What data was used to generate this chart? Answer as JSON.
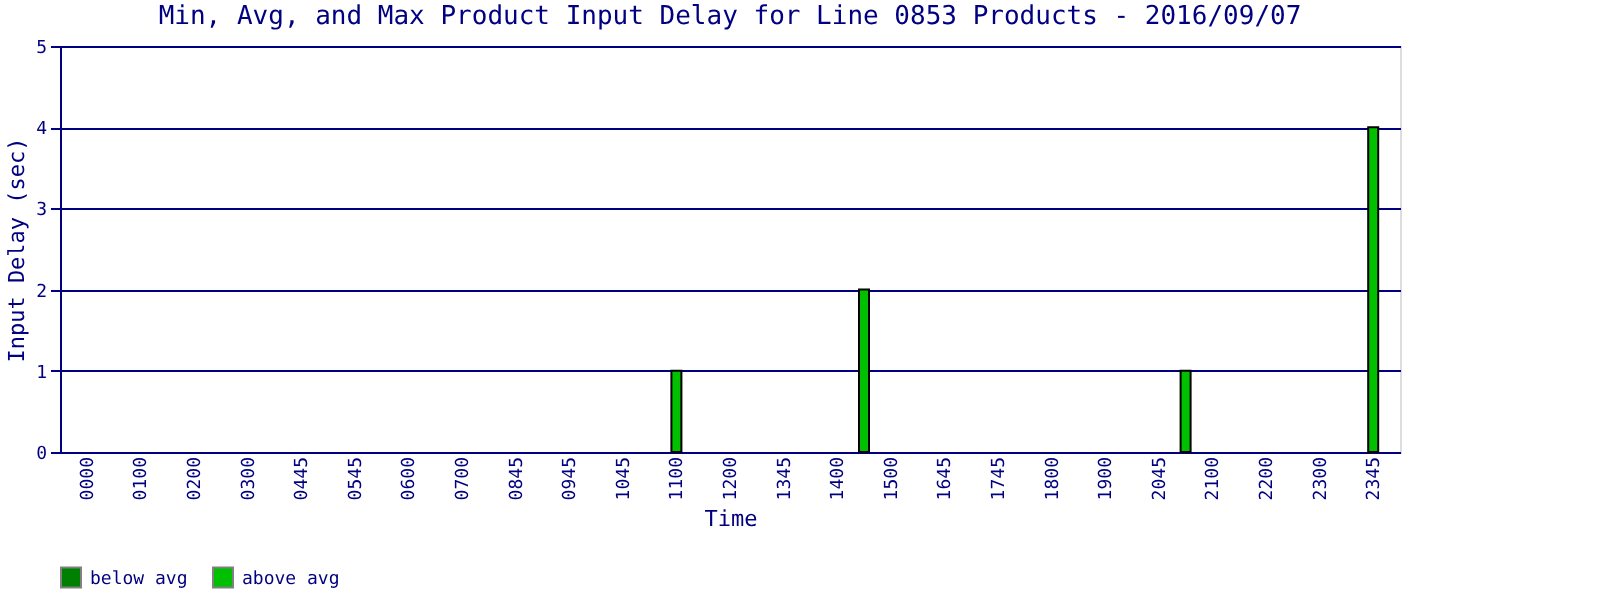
{
  "chart_data": {
    "type": "bar",
    "title": "Min, Avg, and Max Product Input Delay for Line 0853 Products - 2016/09/07",
    "xlabel": "Time",
    "ylabel": "Input Delay (sec)",
    "categories": [
      "0000",
      null,
      "0100",
      null,
      "0200",
      null,
      "0300",
      null,
      "0445",
      null,
      "0545",
      null,
      "0600",
      null,
      "0700",
      null,
      "0845",
      null,
      "0945",
      null,
      "1045",
      null,
      "1100",
      null,
      "1200",
      null,
      "1345",
      null,
      "1400",
      null,
      "1500",
      null,
      "1645",
      null,
      "1745",
      null,
      "1800",
      null,
      "1900",
      null,
      "2045",
      null,
      "2100",
      null,
      "2200",
      null,
      "2300",
      null,
      "2345"
    ],
    "series": [
      {
        "name": "below avg",
        "color": "#008000",
        "values": [
          null,
          null,
          null,
          null,
          null,
          null,
          null,
          null,
          null,
          null,
          null,
          null,
          null,
          null,
          null,
          null,
          null,
          null,
          null,
          null,
          null,
          null,
          null,
          null,
          null,
          null,
          null,
          null,
          null,
          null,
          null,
          null,
          null,
          null,
          null,
          null,
          null,
          null,
          null,
          null,
          null,
          null,
          null,
          null,
          null,
          null,
          null,
          null,
          null
        ]
      },
      {
        "name": "above avg",
        "color": "#00c000",
        "values": [
          null,
          null,
          null,
          null,
          null,
          null,
          null,
          null,
          null,
          null,
          null,
          null,
          null,
          null,
          null,
          null,
          null,
          null,
          null,
          null,
          null,
          null,
          1,
          null,
          null,
          null,
          null,
          null,
          null,
          2,
          null,
          null,
          null,
          null,
          null,
          null,
          null,
          null,
          null,
          null,
          null,
          1,
          null,
          null,
          null,
          null,
          null,
          null,
          4
        ]
      }
    ],
    "ylim": [
      0,
      5
    ],
    "yticks": [
      0,
      1,
      2,
      3,
      4,
      5
    ],
    "grid": "y",
    "legend": "bottom"
  }
}
